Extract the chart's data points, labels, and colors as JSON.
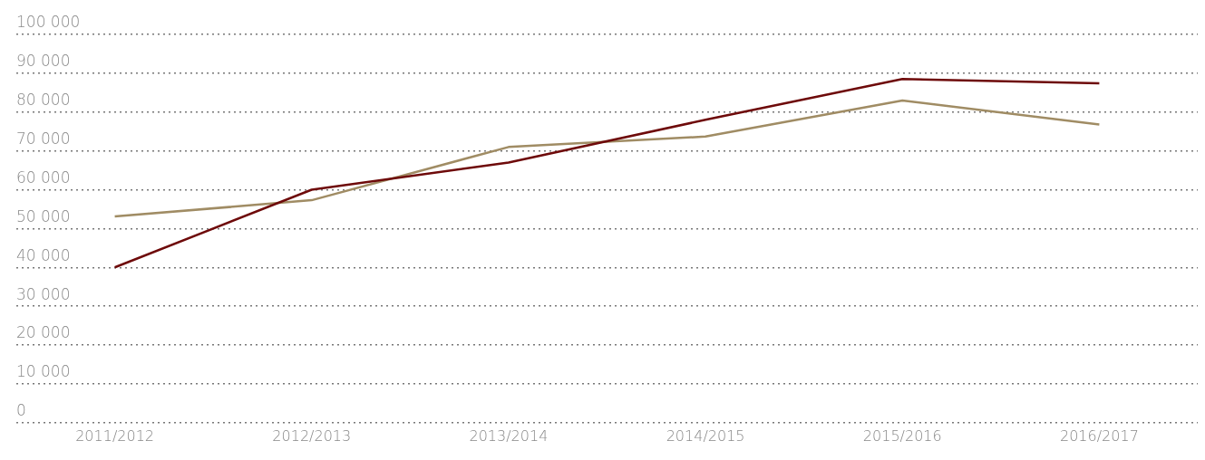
{
  "chart_data": {
    "type": "line",
    "categories": [
      "2011/2012",
      "2012/2013",
      "2013/2014",
      "2014/2015",
      "2015/2016",
      "2016/2017"
    ],
    "series": [
      {
        "color": "#6e0a0a",
        "values": [
          40000,
          60000,
          67000,
          78000,
          88500,
          87400
        ]
      },
      {
        "color": "#a08c64",
        "values": [
          53100,
          57300,
          71000,
          73700,
          83000,
          76800
        ]
      }
    ],
    "ylim": [
      0,
      100000
    ],
    "yticks": [
      {
        "value": 0,
        "label": "0"
      },
      {
        "value": 10000,
        "label": "10 000"
      },
      {
        "value": 20000,
        "label": "20 000"
      },
      {
        "value": 30000,
        "label": "30 000"
      },
      {
        "value": 40000,
        "label": "40 000"
      },
      {
        "value": 50000,
        "label": "50 000"
      },
      {
        "value": 60000,
        "label": "60 000"
      },
      {
        "value": 70000,
        "label": "70 000"
      },
      {
        "value": 80000,
        "label": "80 000"
      },
      {
        "value": 90000,
        "label": "90 000"
      },
      {
        "value": 100000,
        "label": "100 000"
      }
    ],
    "grid": "y",
    "legend": false,
    "marker": "none",
    "line_style": "solid"
  }
}
